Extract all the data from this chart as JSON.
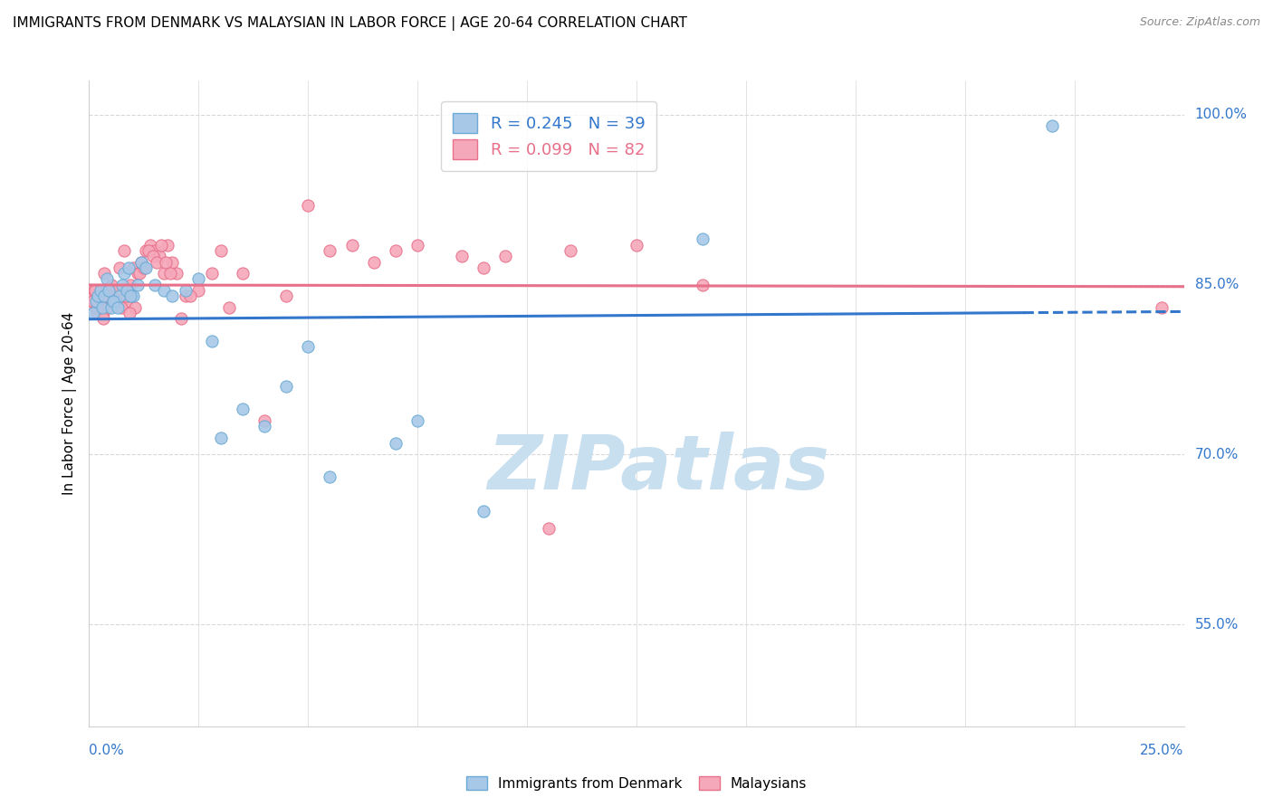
{
  "title": "IMMIGRANTS FROM DENMARK VS MALAYSIAN IN LABOR FORCE | AGE 20-64 CORRELATION CHART",
  "source": "Source: ZipAtlas.com",
  "ylabel": "In Labor Force | Age 20-64",
  "ylabel_right_ticks": [
    55.0,
    70.0,
    85.0,
    100.0
  ],
  "xlim": [
    0.0,
    25.0
  ],
  "ylim": [
    46.0,
    103.0
  ],
  "legend_r1": "R = 0.245",
  "legend_n1": "N = 39",
  "legend_r2": "R = 0.099",
  "legend_n2": "N = 82",
  "denmark_color": "#a8c8e8",
  "malaysia_color": "#f5a8ba",
  "denmark_edge": "#6aaad4",
  "malaysia_edge": "#e8708a",
  "trend_blue": "#3377cc",
  "trend_pink": "#e8708a",
  "dk_x": [
    0.1,
    0.15,
    0.2,
    0.25,
    0.3,
    0.4,
    0.5,
    0.6,
    0.7,
    0.8,
    0.9,
    1.0,
    1.1,
    1.2,
    1.3,
    1.5,
    1.7,
    1.9,
    2.2,
    2.5,
    3.0,
    3.5,
    4.0,
    4.5,
    5.0,
    5.5,
    7.0,
    7.5,
    9.0,
    0.35,
    0.45,
    0.55,
    0.65,
    0.75,
    0.85,
    0.95,
    2.8,
    14.0,
    22.0
  ],
  "dk_y": [
    82.5,
    83.5,
    84.0,
    84.5,
    83.0,
    85.5,
    83.0,
    83.5,
    84.0,
    86.0,
    86.5,
    84.0,
    85.0,
    87.0,
    86.5,
    85.0,
    84.5,
    84.0,
    84.5,
    85.5,
    71.5,
    74.0,
    72.5,
    76.0,
    79.5,
    68.0,
    71.0,
    73.0,
    65.0,
    84.0,
    84.5,
    83.5,
    83.0,
    85.0,
    84.5,
    84.0,
    80.0,
    89.0,
    99.0
  ],
  "my_x": [
    0.05,
    0.1,
    0.12,
    0.15,
    0.18,
    0.2,
    0.22,
    0.25,
    0.28,
    0.3,
    0.32,
    0.35,
    0.38,
    0.4,
    0.42,
    0.45,
    0.5,
    0.55,
    0.6,
    0.65,
    0.7,
    0.75,
    0.8,
    0.85,
    0.9,
    0.95,
    1.0,
    1.05,
    1.1,
    1.2,
    1.3,
    1.4,
    1.5,
    1.6,
    1.7,
    1.8,
    1.9,
    2.0,
    2.2,
    2.5,
    2.8,
    3.0,
    3.2,
    3.5,
    4.0,
    4.5,
    5.0,
    5.5,
    6.0,
    6.5,
    7.0,
    7.5,
    8.5,
    9.0,
    9.5,
    10.5,
    11.0,
    12.5,
    14.0,
    0.08,
    0.13,
    0.17,
    0.23,
    0.33,
    0.43,
    0.53,
    0.63,
    0.73,
    0.83,
    0.93,
    1.15,
    1.25,
    1.35,
    1.45,
    1.55,
    1.65,
    1.75,
    1.85,
    2.1,
    2.3,
    24.5
  ],
  "my_y": [
    84.0,
    83.5,
    84.5,
    83.0,
    82.5,
    84.0,
    83.5,
    84.5,
    83.0,
    84.0,
    82.5,
    86.0,
    84.5,
    83.0,
    84.0,
    83.5,
    85.0,
    84.0,
    83.5,
    84.5,
    86.5,
    84.0,
    88.0,
    83.5,
    84.0,
    85.0,
    86.5,
    83.0,
    86.0,
    87.0,
    88.0,
    88.5,
    88.0,
    87.5,
    86.0,
    88.5,
    87.0,
    86.0,
    84.0,
    84.5,
    86.0,
    88.0,
    83.0,
    86.0,
    73.0,
    84.0,
    92.0,
    88.0,
    88.5,
    87.0,
    88.0,
    88.5,
    87.5,
    86.5,
    87.5,
    63.5,
    88.0,
    88.5,
    85.0,
    83.5,
    84.5,
    83.0,
    84.0,
    82.0,
    84.0,
    83.5,
    84.5,
    83.0,
    84.0,
    82.5,
    86.0,
    86.5,
    88.0,
    87.5,
    87.0,
    88.5,
    87.0,
    86.0,
    82.0,
    84.0,
    83.0
  ],
  "watermark": "ZIPatlas",
  "watermark_color": "#c8dff0",
  "bg_color": "#ffffff",
  "grid_color": "#d8d8d8",
  "spine_color": "#d0d0d0"
}
